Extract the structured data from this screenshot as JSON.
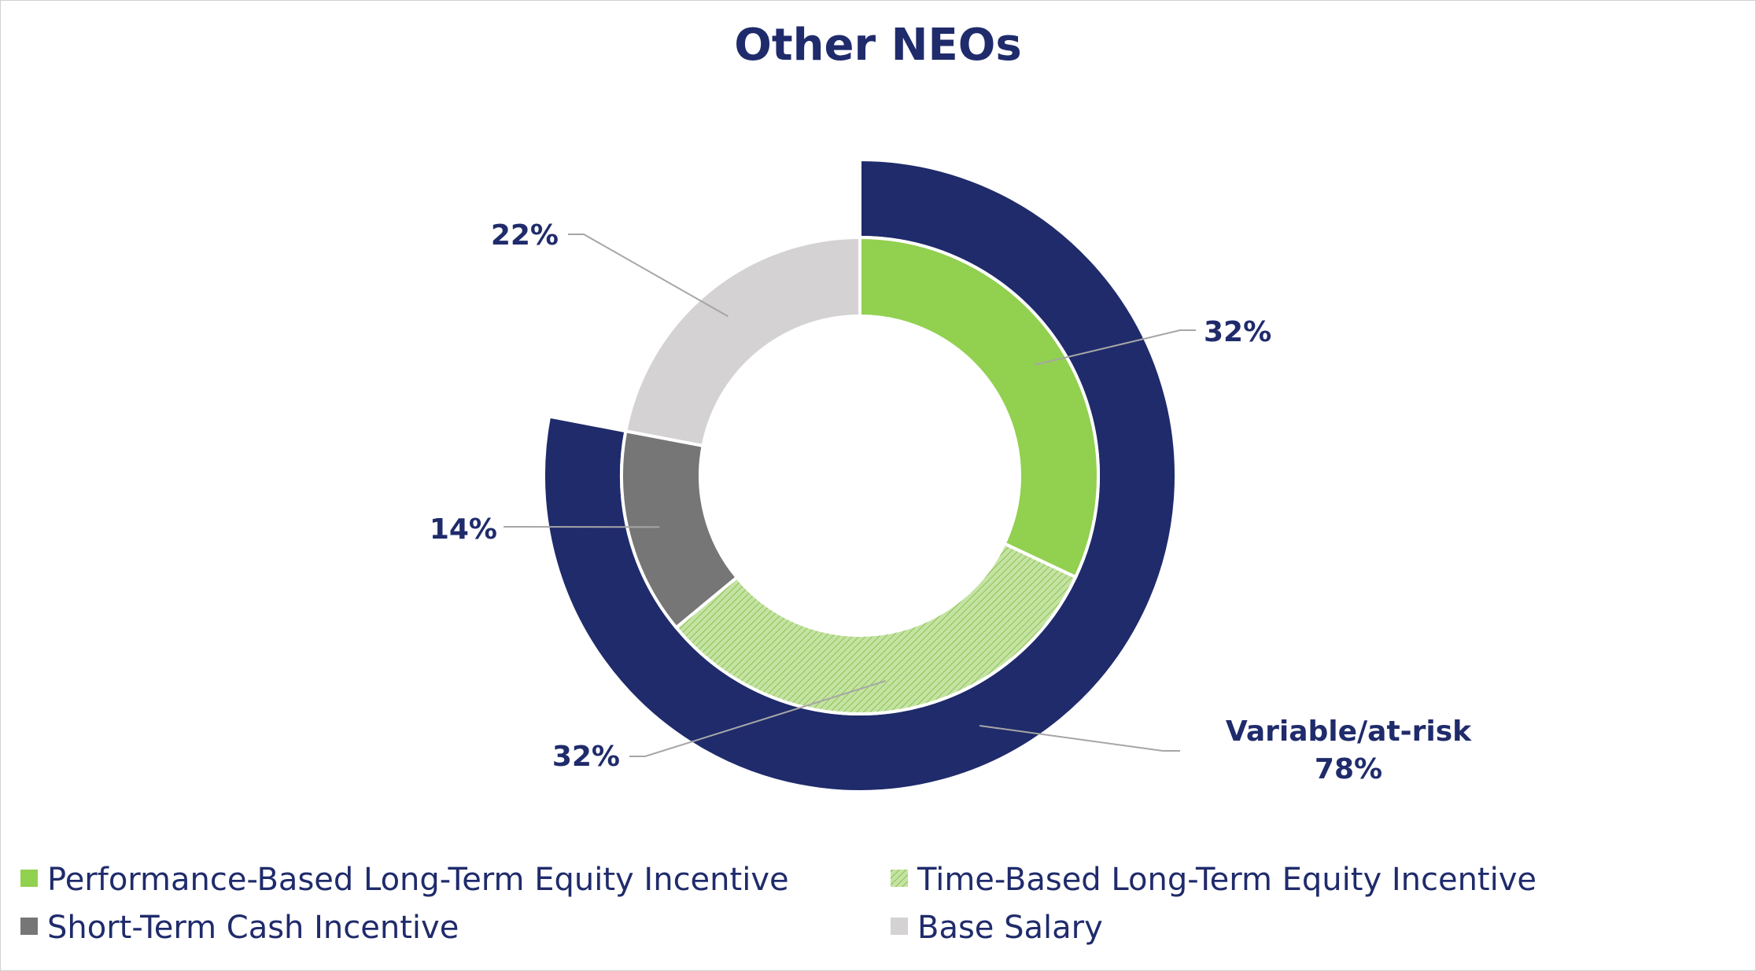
{
  "chart_data": {
    "type": "pie",
    "title": "Other NEOs",
    "inner_ring": {
      "slices": [
        {
          "name": "Performance-Based Long-Term Equity Incentive",
          "value": 32,
          "label": "32%",
          "color": "#92d050",
          "pattern": "solid"
        },
        {
          "name": "Time-Based Long-Term Equity Incentive",
          "value": 32,
          "label": "32%",
          "color": "#92d050",
          "pattern": "hatched"
        },
        {
          "name": "Short-Term Cash Incentive",
          "value": 14,
          "label": "14%",
          "color": "#767676",
          "pattern": "solid"
        },
        {
          "name": "Base Salary",
          "value": 22,
          "label": "22%",
          "color": "#d4d2d3",
          "pattern": "solid"
        }
      ]
    },
    "outer_ring": {
      "slices": [
        {
          "name": "Variable/at-risk",
          "value": 78,
          "label": "78%",
          "color": "#1f2b6b"
        }
      ]
    },
    "legend": {
      "placement": "bottom",
      "items": [
        {
          "label": "Performance-Based Long-Term Equity Incentive",
          "color": "#92d050",
          "pattern": "solid"
        },
        {
          "label": "Time-Based Long-Term Equity Incentive",
          "color": "#92d050",
          "pattern": "hatched"
        },
        {
          "label": "Short-Term Cash Incentive",
          "color": "#767676",
          "pattern": "solid"
        },
        {
          "label": "Base Salary",
          "color": "#d4d2d3",
          "pattern": "solid"
        }
      ]
    }
  }
}
